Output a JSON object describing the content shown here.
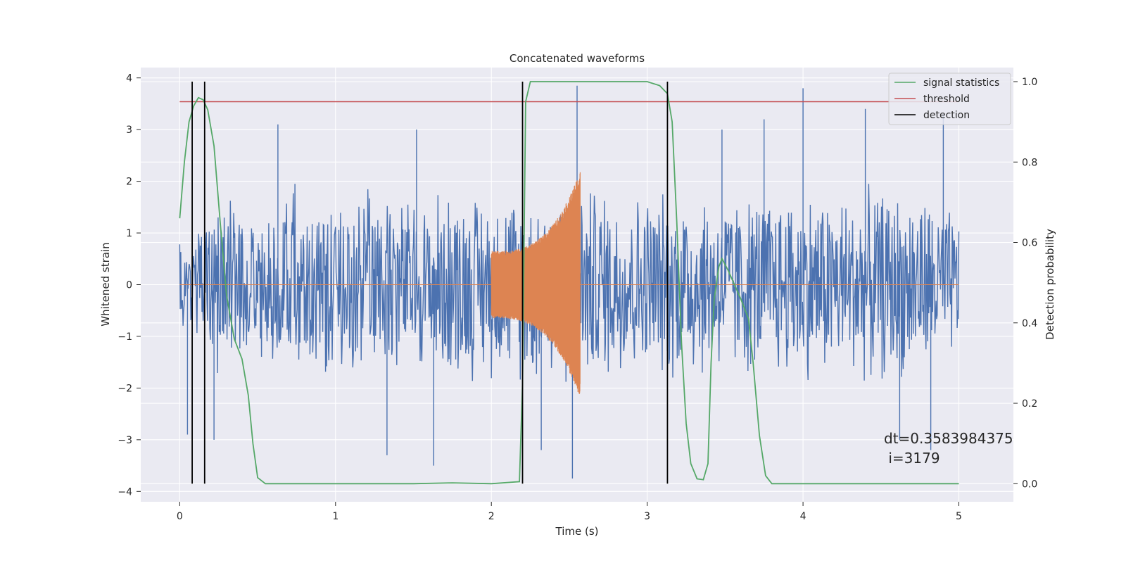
{
  "chart_data": {
    "type": "line",
    "title": "Concatenated waveforms",
    "xlabel": "Time (s)",
    "ylabel": "Whitened strain",
    "y2label": "Detection probability",
    "xlim": [
      -0.25,
      5.35
    ],
    "ylim": [
      -4.2,
      4.2
    ],
    "y2lim": [
      -0.045,
      1.035
    ],
    "x_ticks": [
      0,
      1,
      2,
      3,
      4,
      5
    ],
    "x_tick_labels": [
      "0",
      "1",
      "2",
      "3",
      "4",
      "5"
    ],
    "y_ticks": [
      4,
      3,
      2,
      1,
      0,
      -1,
      -2,
      -3,
      -4
    ],
    "y_tick_labels": [
      "4",
      "3",
      "2",
      "1",
      "0",
      "−1",
      "−2",
      "−3",
      "−4"
    ],
    "y2_ticks": [
      1.0,
      0.8,
      0.6,
      0.4,
      0.2,
      0.0
    ],
    "y2_tick_labels": [
      "1.0",
      "0.8",
      "0.6",
      "0.4",
      "0.2",
      "0.0"
    ],
    "grid": true,
    "legend_position": "top-right",
    "legend": [
      {
        "label": "signal statistics",
        "color": "#55a868"
      },
      {
        "label": "threshold",
        "color": "#c44e52"
      },
      {
        "label": "detection",
        "color": "#000000"
      }
    ],
    "colors": {
      "strain": "#4c72b0",
      "injection": "#dd8452",
      "statistics": "#55a868",
      "threshold": "#c44e52",
      "detection": "#000000",
      "plot_bg": "#eaeaf2",
      "grid": "#ffffff"
    },
    "strain_range": [
      0,
      5
    ],
    "strain_envelope": [
      {
        "x": 0.0,
        "y": 1.0
      },
      {
        "x": 0.25,
        "y": 1.9
      },
      {
        "x": 0.5,
        "y": 1.7
      },
      {
        "x": 0.75,
        "y": 2.0
      },
      {
        "x": 1.0,
        "y": 1.8
      },
      {
        "x": 1.25,
        "y": 1.9
      },
      {
        "x": 1.5,
        "y": 1.8
      },
      {
        "x": 1.75,
        "y": 2.0
      },
      {
        "x": 2.0,
        "y": 1.9
      },
      {
        "x": 2.25,
        "y": 2.0
      },
      {
        "x": 2.5,
        "y": 2.1
      },
      {
        "x": 2.75,
        "y": 2.0
      },
      {
        "x": 3.0,
        "y": 1.9
      },
      {
        "x": 3.25,
        "y": 2.0
      },
      {
        "x": 3.5,
        "y": 1.9
      },
      {
        "x": 3.75,
        "y": 1.9
      },
      {
        "x": 4.0,
        "y": 2.0
      },
      {
        "x": 4.25,
        "y": 1.9
      },
      {
        "x": 4.5,
        "y": 2.0
      },
      {
        "x": 4.75,
        "y": 1.9
      },
      {
        "x": 5.0,
        "y": 1.5
      }
    ],
    "strain_spikes": [
      {
        "x": 0.16,
        "y": 2.8
      },
      {
        "x": 0.63,
        "y": 3.1
      },
      {
        "x": 1.52,
        "y": 3.0
      },
      {
        "x": 2.55,
        "y": 3.85
      },
      {
        "x": 3.48,
        "y": 3.0
      },
      {
        "x": 3.75,
        "y": 3.2
      },
      {
        "x": 4.0,
        "y": 3.8
      },
      {
        "x": 4.4,
        "y": 3.4
      },
      {
        "x": 4.9,
        "y": 3.3
      },
      {
        "x": 0.05,
        "y": -2.9
      },
      {
        "x": 0.22,
        "y": -3.0
      },
      {
        "x": 1.33,
        "y": -3.3
      },
      {
        "x": 1.63,
        "y": -3.5
      },
      {
        "x": 2.52,
        "y": -3.75
      },
      {
        "x": 2.32,
        "y": -3.2
      },
      {
        "x": 4.62,
        "y": -3.0
      },
      {
        "x": 4.82,
        "y": -3.2
      }
    ],
    "injection": {
      "start": 2.0,
      "end": 2.57,
      "amp_start": 0.65,
      "amp_end": 2.2
    },
    "statistics": [
      {
        "x": 0.0,
        "y": 0.66
      },
      {
        "x": 0.03,
        "y": 0.8
      },
      {
        "x": 0.06,
        "y": 0.9
      },
      {
        "x": 0.09,
        "y": 0.94
      },
      {
        "x": 0.12,
        "y": 0.96
      },
      {
        "x": 0.15,
        "y": 0.955
      },
      {
        "x": 0.18,
        "y": 0.93
      },
      {
        "x": 0.22,
        "y": 0.84
      },
      {
        "x": 0.26,
        "y": 0.65
      },
      {
        "x": 0.3,
        "y": 0.47
      },
      {
        "x": 0.35,
        "y": 0.36
      },
      {
        "x": 0.4,
        "y": 0.31
      },
      {
        "x": 0.44,
        "y": 0.22
      },
      {
        "x": 0.47,
        "y": 0.1
      },
      {
        "x": 0.5,
        "y": 0.015
      },
      {
        "x": 0.55,
        "y": 0.0
      },
      {
        "x": 1.0,
        "y": 0.0
      },
      {
        "x": 1.5,
        "y": 0.0
      },
      {
        "x": 1.75,
        "y": 0.002
      },
      {
        "x": 2.0,
        "y": 0.0
      },
      {
        "x": 2.18,
        "y": 0.005
      },
      {
        "x": 2.2,
        "y": 0.25
      },
      {
        "x": 2.21,
        "y": 0.6
      },
      {
        "x": 2.22,
        "y": 0.95
      },
      {
        "x": 2.25,
        "y": 1.0
      },
      {
        "x": 2.8,
        "y": 1.0
      },
      {
        "x": 3.0,
        "y": 1.0
      },
      {
        "x": 3.08,
        "y": 0.99
      },
      {
        "x": 3.13,
        "y": 0.97
      },
      {
        "x": 3.16,
        "y": 0.9
      },
      {
        "x": 3.19,
        "y": 0.65
      },
      {
        "x": 3.22,
        "y": 0.35
      },
      {
        "x": 3.25,
        "y": 0.15
      },
      {
        "x": 3.28,
        "y": 0.05
      },
      {
        "x": 3.32,
        "y": 0.012
      },
      {
        "x": 3.36,
        "y": 0.01
      },
      {
        "x": 3.39,
        "y": 0.05
      },
      {
        "x": 3.41,
        "y": 0.3
      },
      {
        "x": 3.43,
        "y": 0.46
      },
      {
        "x": 3.46,
        "y": 0.54
      },
      {
        "x": 3.48,
        "y": 0.56
      },
      {
        "x": 3.52,
        "y": 0.53
      },
      {
        "x": 3.6,
        "y": 0.46
      },
      {
        "x": 3.65,
        "y": 0.41
      },
      {
        "x": 3.68,
        "y": 0.3
      },
      {
        "x": 3.72,
        "y": 0.12
      },
      {
        "x": 3.76,
        "y": 0.02
      },
      {
        "x": 3.8,
        "y": 0.0
      },
      {
        "x": 4.5,
        "y": 0.0
      },
      {
        "x": 5.0,
        "y": 0.0
      }
    ],
    "threshold": {
      "value": 0.95,
      "x_start": 0.0,
      "x_end": 5.0
    },
    "detections": [
      0.08,
      0.16,
      2.2,
      3.13
    ],
    "detection_y_range": [
      0.0,
      1.0
    ],
    "annotation": {
      "line1": "dt=0.3583984375",
      "line2": " i=3179",
      "x": 4.5,
      "y": -3.0
    }
  }
}
